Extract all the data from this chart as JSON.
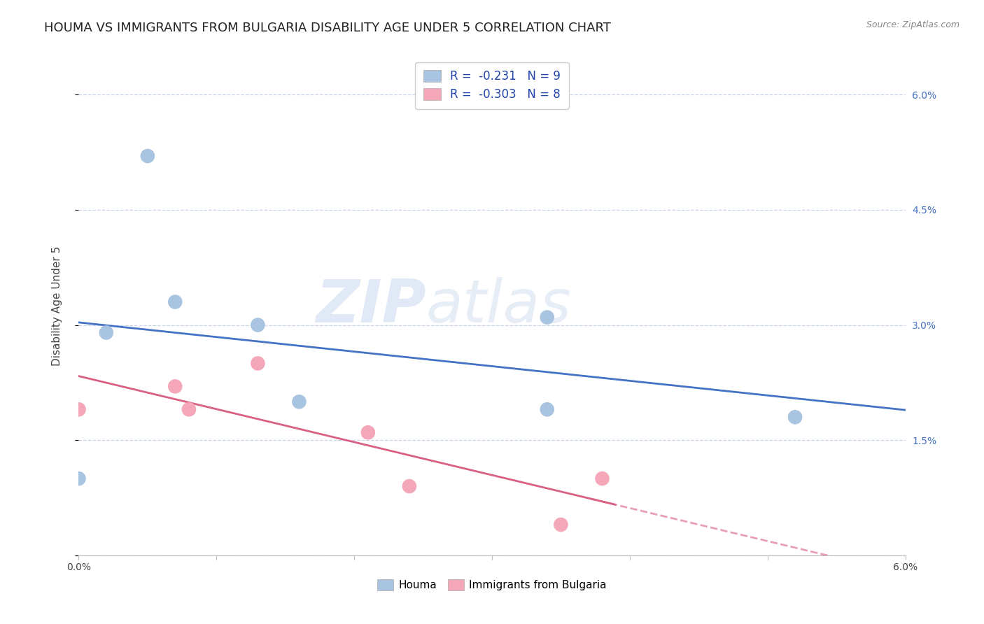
{
  "title": "HOUMA VS IMMIGRANTS FROM BULGARIA DISABILITY AGE UNDER 5 CORRELATION CHART",
  "source": "Source: ZipAtlas.com",
  "ylabel": "Disability Age Under 5",
  "xlim": [
    0.0,
    0.06
  ],
  "ylim": [
    0.0,
    0.065
  ],
  "yticks": [
    0.0,
    0.015,
    0.03,
    0.045,
    0.06
  ],
  "ytick_labels": [
    "",
    "1.5%",
    "3.0%",
    "4.5%",
    "6.0%"
  ],
  "xticks": [
    0.0,
    0.01,
    0.02,
    0.03,
    0.04,
    0.05,
    0.06
  ],
  "xtick_labels": [
    "0.0%",
    "",
    "",
    "",
    "",
    "",
    "6.0%"
  ],
  "houma_x": [
    0.005,
    0.007,
    0.013,
    0.002,
    0.016,
    0.034,
    0.034,
    0.052,
    0.0
  ],
  "houma_y": [
    0.052,
    0.033,
    0.03,
    0.029,
    0.02,
    0.031,
    0.019,
    0.018,
    0.01
  ],
  "bulgaria_x": [
    0.0,
    0.007,
    0.008,
    0.013,
    0.021,
    0.024,
    0.038,
    0.035
  ],
  "bulgaria_y": [
    0.019,
    0.022,
    0.019,
    0.025,
    0.016,
    0.009,
    0.01,
    0.004
  ],
  "houma_color": "#a8c4e0",
  "houma_line_color": "#4472c4",
  "bulgaria_color": "#f4a7b9",
  "bulgaria_line_color": "#d96083",
  "houma_R": -0.231,
  "houma_N": 9,
  "bulgaria_R": -0.303,
  "bulgaria_N": 8,
  "legend_label_houma": "Houma",
  "legend_label_bulgaria": "Immigrants from Bulgaria",
  "watermark_zip": "ZIP",
  "watermark_atlas": "atlas",
  "background_color": "#ffffff",
  "grid_color": "#c8d4e8",
  "title_fontsize": 13,
  "axis_label_fontsize": 11,
  "tick_fontsize": 10,
  "dot_size": 220
}
